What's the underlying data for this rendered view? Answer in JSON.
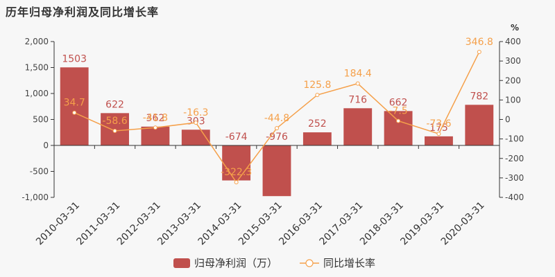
{
  "title": "历年归母净利润及同比增长率",
  "chart_data": {
    "type": "bar",
    "categories": [
      "2010-03-31",
      "2011-03-31",
      "2012-03-31",
      "2013-03-31",
      "2014-03-31",
      "2015-03-31",
      "2016-03-31",
      "2017-03-31",
      "2018-03-31",
      "2019-03-31",
      "2020-03-31"
    ],
    "series": [
      {
        "name": "归母净利润（万）",
        "type": "bar",
        "values": [
          1503,
          622,
          362,
          303,
          -674,
          -976,
          252,
          716,
          662,
          175,
          782
        ],
        "color": "#c0504d"
      },
      {
        "name": "同比增长率",
        "type": "line",
        "values": [
          34.7,
          -58.6,
          -41.8,
          -16.3,
          -322.3,
          -44.8,
          125.8,
          184.4,
          -7.5,
          -73.6,
          346.8
        ],
        "color": "#f5a04a"
      }
    ],
    "y_left": {
      "ylim": [
        -1000,
        2000
      ],
      "ticks": [
        -1000,
        -500,
        0,
        500,
        1000,
        1500,
        2000
      ],
      "tick_labels": [
        "-1,000",
        "-500",
        "0",
        "500",
        "1,000",
        "1,500",
        "2,000"
      ]
    },
    "y_right": {
      "ylim": [
        -400,
        400
      ],
      "ticks": [
        -400,
        -300,
        -200,
        -100,
        0,
        100,
        200,
        300,
        400
      ],
      "unit": "%"
    },
    "legend": "bottom-center"
  }
}
